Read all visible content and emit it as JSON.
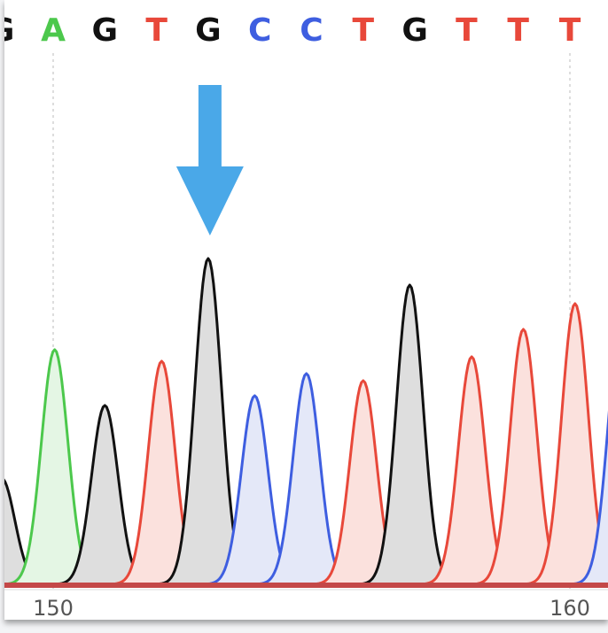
{
  "chart_data": {
    "type": "area",
    "description_type": "sequencing-chromatogram",
    "bases": [
      {
        "position": 149,
        "call": "G"
      },
      {
        "position": 150,
        "call": "A"
      },
      {
        "position": 151,
        "call": "G"
      },
      {
        "position": 152,
        "call": "T"
      },
      {
        "position": 153,
        "call": "G"
      },
      {
        "position": 154,
        "call": "C"
      },
      {
        "position": 155,
        "call": "C"
      },
      {
        "position": 156,
        "call": "T"
      },
      {
        "position": 157,
        "call": "G"
      },
      {
        "position": 158,
        "call": "T"
      },
      {
        "position": 159,
        "call": "T"
      },
      {
        "position": 160,
        "call": "T"
      },
      {
        "position": 161,
        "call": "C"
      }
    ],
    "peaks": [
      {
        "base": "G",
        "x": 149.0,
        "height": 120
      },
      {
        "base": "A",
        "x": 150.03,
        "height": 265
      },
      {
        "base": "G",
        "x": 151.0,
        "height": 202
      },
      {
        "base": "T",
        "x": 152.1,
        "height": 252
      },
      {
        "base": "G",
        "x": 153.0,
        "height": 368
      },
      {
        "base": "C",
        "x": 153.9,
        "height": 213
      },
      {
        "base": "C",
        "x": 154.9,
        "height": 238
      },
      {
        "base": "T",
        "x": 156.0,
        "height": 230
      },
      {
        "base": "G",
        "x": 156.9,
        "height": 338
      },
      {
        "base": "T",
        "x": 158.1,
        "height": 257
      },
      {
        "base": "T",
        "x": 159.1,
        "height": 288
      },
      {
        "base": "T",
        "x": 160.1,
        "height": 317
      },
      {
        "base": "C",
        "x": 161.0,
        "height": 300
      }
    ],
    "x_ticks": [
      "150",
      "160"
    ],
    "xlim": [
      148.9,
      161.0
    ],
    "grid": "dashed vertical at ticks",
    "annotation": {
      "type": "arrow",
      "points_to_position": 153,
      "color": "#4aa8e8"
    },
    "colors": {
      "A": {
        "stroke": "#4cc84c",
        "fill": "#e4f6e4"
      },
      "C": {
        "stroke": "#3e5ee0",
        "fill": "#e4e8f8"
      },
      "G": {
        "stroke": "#111111",
        "fill": "#dedede"
      },
      "T": {
        "stroke": "#e8483a",
        "fill": "#fbe1dd"
      }
    }
  }
}
